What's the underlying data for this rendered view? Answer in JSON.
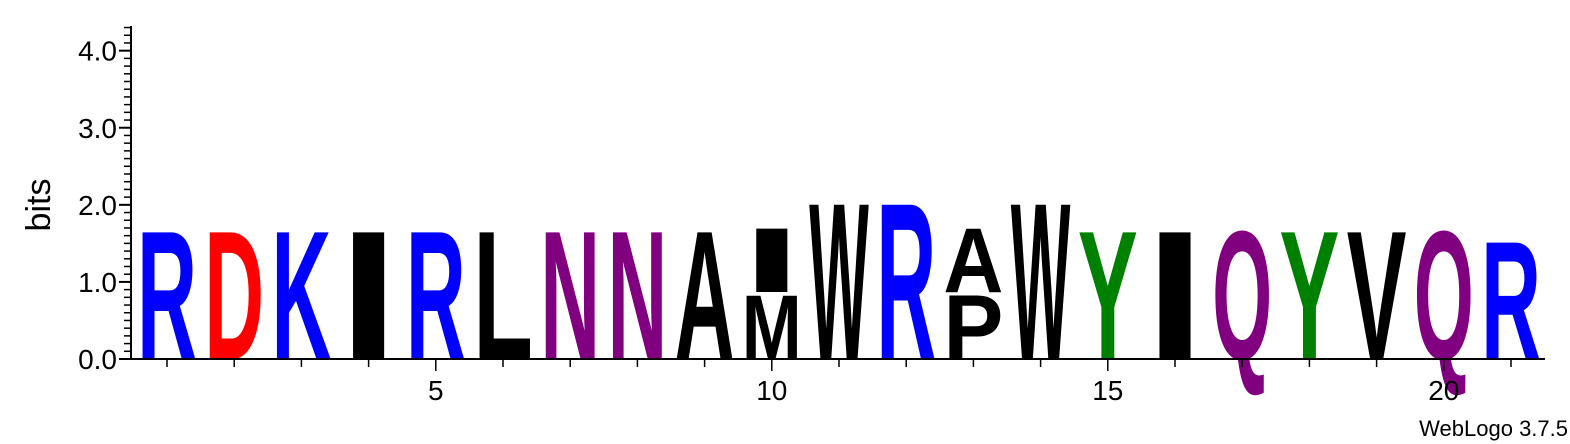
{
  "chart_data": {
    "type": "sequence-logo",
    "ylabel": "bits",
    "ylim": [
      0,
      4.32
    ],
    "y_ticks": [
      "0.0",
      "1.0",
      "2.0",
      "3.0",
      "4.0"
    ],
    "x_tick_labels": [
      {
        "pos": 5,
        "label": "5"
      },
      {
        "pos": 10,
        "label": "10"
      },
      {
        "pos": 15,
        "label": "15"
      },
      {
        "pos": 20,
        "label": "20"
      }
    ],
    "credit": "WebLogo 3.7.5",
    "colors": {
      "R": "#0000ff",
      "K": "#0000ff",
      "D": "#ff0000",
      "N": "#800080",
      "Q": "#800080",
      "Y": "#008000",
      "I": "#000000",
      "L": "#000000",
      "A": "#000000",
      "M": "#000000",
      "W": "#000000",
      "P": "#000000",
      "V": "#000000"
    },
    "positions": [
      {
        "pos": 1,
        "stack": [
          {
            "letter": "R",
            "bits": 1.74
          }
        ]
      },
      {
        "pos": 2,
        "stack": [
          {
            "letter": "D",
            "bits": 1.74
          }
        ]
      },
      {
        "pos": 3,
        "stack": [
          {
            "letter": "K",
            "bits": 1.74
          }
        ]
      },
      {
        "pos": 4,
        "stack": [
          {
            "letter": "I",
            "bits": 1.74
          }
        ]
      },
      {
        "pos": 5,
        "stack": [
          {
            "letter": "R",
            "bits": 1.74
          }
        ]
      },
      {
        "pos": 6,
        "stack": [
          {
            "letter": "L",
            "bits": 1.74
          }
        ]
      },
      {
        "pos": 7,
        "stack": [
          {
            "letter": "N",
            "bits": 1.74
          }
        ]
      },
      {
        "pos": 8,
        "stack": [
          {
            "letter": "N",
            "bits": 1.74
          }
        ]
      },
      {
        "pos": 9,
        "stack": [
          {
            "letter": "A",
            "bits": 1.74
          }
        ]
      },
      {
        "pos": 10,
        "stack": [
          {
            "letter": "M",
            "bits": 0.87
          },
          {
            "letter": "I",
            "bits": 0.87
          }
        ]
      },
      {
        "pos": 11,
        "stack": [
          {
            "letter": "W",
            "bits": 2.12
          }
        ]
      },
      {
        "pos": 12,
        "stack": [
          {
            "letter": "R",
            "bits": 2.12
          }
        ]
      },
      {
        "pos": 13,
        "stack": [
          {
            "letter": "P",
            "bits": 0.87
          },
          {
            "letter": "A",
            "bits": 0.87
          }
        ]
      },
      {
        "pos": 14,
        "stack": [
          {
            "letter": "W",
            "bits": 2.12
          }
        ]
      },
      {
        "pos": 15,
        "stack": [
          {
            "letter": "Y",
            "bits": 1.74
          }
        ]
      },
      {
        "pos": 16,
        "stack": [
          {
            "letter": "I",
            "bits": 1.74
          }
        ]
      },
      {
        "pos": 17,
        "stack": [
          {
            "letter": "Q",
            "bits": 1.74
          }
        ]
      },
      {
        "pos": 18,
        "stack": [
          {
            "letter": "Y",
            "bits": 1.74
          }
        ]
      },
      {
        "pos": 19,
        "stack": [
          {
            "letter": "V",
            "bits": 1.74
          }
        ]
      },
      {
        "pos": 20,
        "stack": [
          {
            "letter": "Q",
            "bits": 1.74
          }
        ]
      },
      {
        "pos": 21,
        "stack": [
          {
            "letter": "R",
            "bits": 1.6
          }
        ]
      }
    ]
  }
}
